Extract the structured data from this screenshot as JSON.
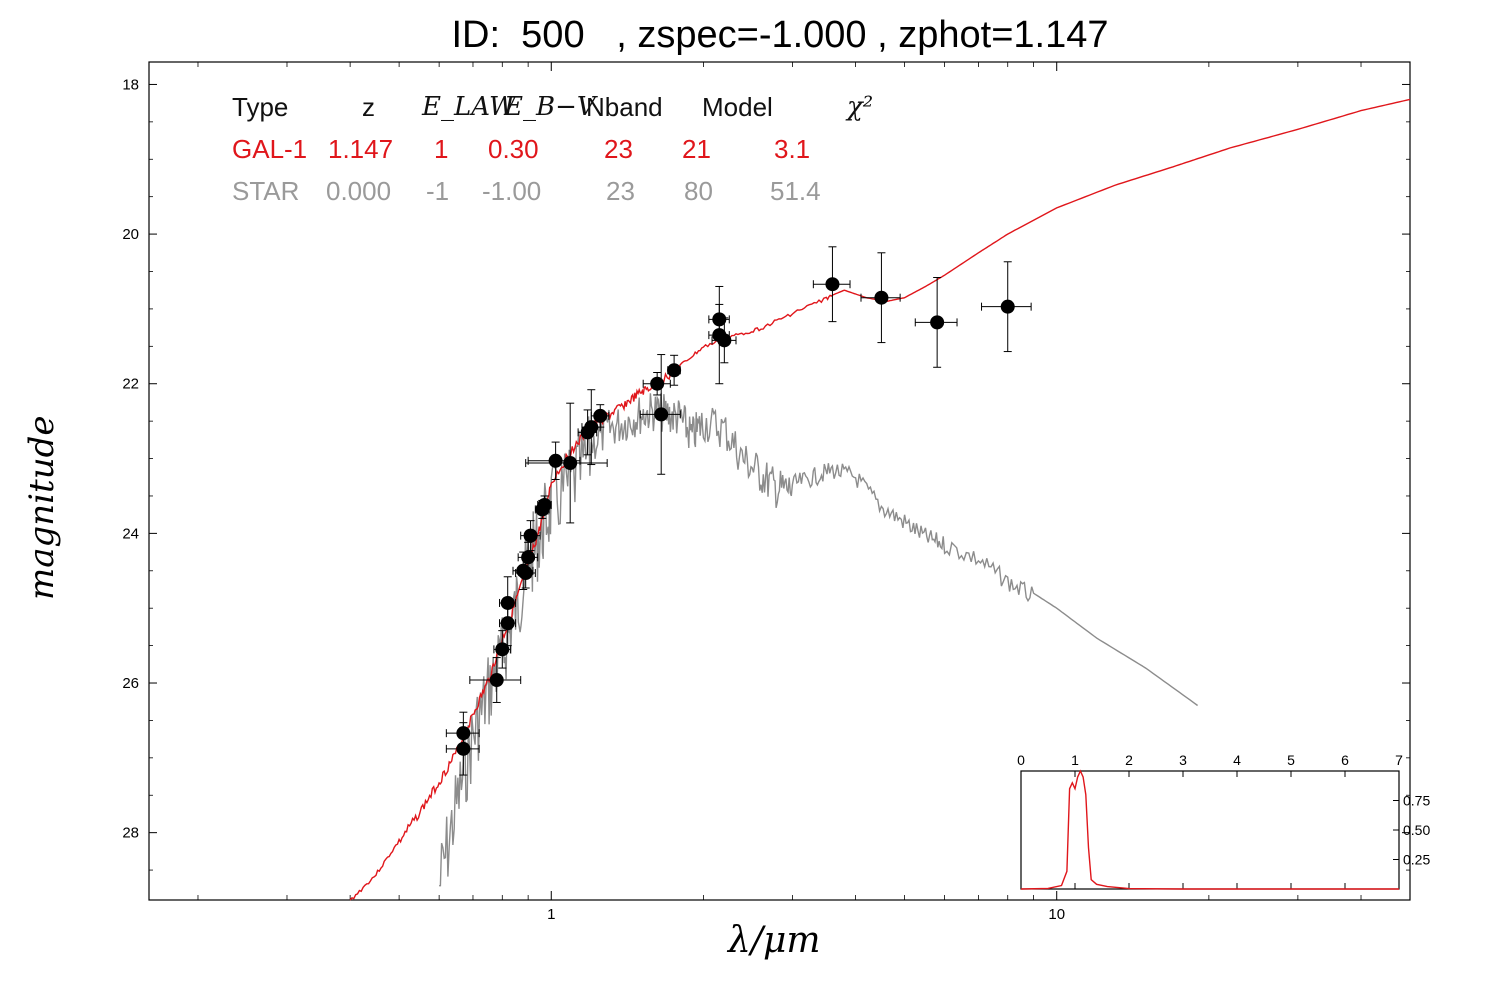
{
  "title": "ID:  500   , zspec=-1.000 , zphot=1.147",
  "axes": {
    "xlabel": "λ/μm",
    "ylabel": "magnitude",
    "x_scale": "log",
    "xlim": [
      0.16,
      50
    ],
    "ylim": [
      28.9,
      17.7
    ],
    "x_tick_labels": [
      "1",
      "10"
    ],
    "y_tick_labels": [
      "18",
      "20",
      "22",
      "24",
      "26",
      "28"
    ]
  },
  "fit_table": {
    "headers": [
      "Type",
      "z",
      "E_LAW",
      "E_B−V",
      "Nband",
      "Model",
      "χ²"
    ],
    "rows": [
      {
        "type": "GAL-1",
        "z": "1.147",
        "elaw": "1",
        "ebv": "0.30",
        "nband": "23",
        "model": "21",
        "chi2": "3.1",
        "color": "#e0161b"
      },
      {
        "type": "STAR",
        "z": "0.000",
        "elaw": "-1",
        "ebv": "-1.00",
        "nband": "23",
        "model": "80",
        "chi2": "51.4",
        "color": "#9a9a9a"
      }
    ]
  },
  "chart_data": [
    {
      "type": "scatter",
      "name_note": "photometry with errorbars",
      "x_scale": "log",
      "points": [
        {
          "x": 0.67,
          "y": 26.67,
          "xerr": 0.05,
          "yerr": 0.28
        },
        {
          "x": 0.67,
          "y": 26.88,
          "xerr": 0.05,
          "yerr": 0.35
        },
        {
          "x": 0.78,
          "y": 25.96,
          "xerr": 0.09,
          "yerr": 0.3
        },
        {
          "x": 0.8,
          "y": 25.55,
          "xerr": 0.03,
          "yerr": 0.25
        },
        {
          "x": 0.82,
          "y": 25.2,
          "xerr": 0.03,
          "yerr": 0.3
        },
        {
          "x": 0.82,
          "y": 24.93,
          "xerr": 0.03,
          "yerr": 0.35
        },
        {
          "x": 0.88,
          "y": 24.5,
          "xerr": 0.04,
          "yerr": 0.25
        },
        {
          "x": 0.89,
          "y": 24.53,
          "xerr": 0.04,
          "yerr": 0.2
        },
        {
          "x": 0.9,
          "y": 24.32,
          "xerr": 0.04,
          "yerr": 0.2
        },
        {
          "x": 0.91,
          "y": 24.03,
          "xerr": 0.04,
          "yerr": 0.2
        },
        {
          "x": 0.96,
          "y": 23.68,
          "xerr": 0.03,
          "yerr": 0.12
        },
        {
          "x": 0.97,
          "y": 23.62,
          "xerr": 0.03,
          "yerr": 0.12
        },
        {
          "x": 1.02,
          "y": 23.03,
          "xerr": 0.12,
          "yerr": 0.25
        },
        {
          "x": 1.09,
          "y": 23.06,
          "xerr": 0.2,
          "yerr": 0.8
        },
        {
          "x": 1.18,
          "y": 22.65,
          "xerr": 0.05,
          "yerr": 0.3
        },
        {
          "x": 1.2,
          "y": 22.58,
          "xerr": 0.05,
          "yerr": 0.5
        },
        {
          "x": 1.25,
          "y": 22.43,
          "xerr": 0.05,
          "yerr": 0.15
        },
        {
          "x": 1.62,
          "y": 22.0,
          "xerr": 0.1,
          "yerr": 0.15
        },
        {
          "x": 1.65,
          "y": 22.41,
          "xerr": 0.15,
          "yerr": 0.8
        },
        {
          "x": 1.75,
          "y": 21.82,
          "xerr": 0.05,
          "yerr": 0.2
        },
        {
          "x": 2.15,
          "y": 21.14,
          "xerr": 0.1,
          "yerr": 0.2
        },
        {
          "x": 2.15,
          "y": 21.35,
          "xerr": 0.1,
          "yerr": 0.65
        },
        {
          "x": 2.2,
          "y": 21.42,
          "xerr": 0.12,
          "yerr": 0.3
        },
        {
          "x": 3.6,
          "y": 20.67,
          "xerr": 0.3,
          "yerr": 0.5
        },
        {
          "x": 4.5,
          "y": 20.85,
          "xerr": 0.4,
          "yerr": 0.6
        },
        {
          "x": 5.8,
          "y": 21.18,
          "xerr": 0.55,
          "yerr": 0.6
        },
        {
          "x": 8.0,
          "y": 20.97,
          "xerr": 0.9,
          "yerr": 0.6
        }
      ]
    },
    {
      "type": "line",
      "series_note": "GAL-1 best-fit template",
      "color": "#e0161b",
      "x": [
        0.4,
        0.45,
        0.5,
        0.55,
        0.6,
        0.65,
        0.7,
        0.75,
        0.8,
        0.85,
        0.9,
        0.95,
        1.0,
        1.1,
        1.2,
        1.3,
        1.4,
        1.5,
        1.6,
        1.8,
        2.0,
        2.3,
        2.6,
        3.0,
        3.5,
        3.8,
        4.2,
        4.6,
        5.0,
        5.5,
        6.0,
        7.0,
        8.0,
        10.0,
        13.0,
        17.0,
        22.0,
        30.0,
        40.0,
        50.0
      ],
      "y": [
        28.9,
        28.55,
        28.1,
        27.7,
        27.3,
        26.9,
        26.4,
        25.95,
        25.4,
        24.9,
        24.4,
        23.9,
        23.3,
        22.85,
        22.55,
        22.4,
        22.25,
        22.1,
        22.0,
        21.75,
        21.5,
        21.35,
        21.25,
        21.05,
        20.85,
        20.75,
        20.85,
        20.9,
        20.85,
        20.7,
        20.55,
        20.25,
        20.0,
        19.65,
        19.35,
        19.1,
        18.85,
        18.6,
        18.35,
        18.2
      ]
    },
    {
      "type": "line",
      "series_note": "STAR best-fit template",
      "color": "#8c8c8c",
      "x": [
        0.6,
        0.65,
        0.7,
        0.75,
        0.8,
        0.85,
        0.9,
        0.95,
        1.0,
        1.1,
        1.2,
        1.3,
        1.4,
        1.5,
        1.6,
        1.7,
        1.8,
        1.9,
        2.0,
        2.2,
        2.4,
        2.6,
        2.8,
        3.0,
        3.3,
        3.6,
        4.0,
        4.5,
        5.0,
        5.5,
        6.0,
        7.0,
        8.0,
        9.0,
        10.0,
        12.0,
        15.0,
        19.0
      ],
      "y": [
        28.5,
        27.4,
        26.5,
        25.9,
        25.4,
        24.8,
        24.2,
        23.8,
        23.4,
        23.1,
        22.7,
        22.5,
        22.4,
        22.3,
        22.25,
        22.3,
        22.35,
        22.6,
        22.4,
        22.5,
        22.9,
        23.1,
        23.3,
        23.3,
        23.2,
        23.1,
        23.2,
        23.6,
        23.8,
        24.0,
        24.1,
        24.3,
        24.6,
        24.8,
        25.0,
        25.4,
        25.8,
        26.3
      ]
    },
    {
      "type": "line",
      "series_note": "inset redshift probability distribution",
      "color": "#e0161b",
      "x_tick_labels": [
        "0",
        "1",
        "2",
        "3",
        "4",
        "5",
        "6",
        "7"
      ],
      "y_tick_labels": [
        "0.25",
        "0.50",
        "0.75"
      ],
      "xlim": [
        0,
        7
      ],
      "ylim": [
        0,
        1.0
      ],
      "x": [
        0,
        0.5,
        0.75,
        0.85,
        0.9,
        0.95,
        1.0,
        1.05,
        1.1,
        1.15,
        1.2,
        1.25,
        1.3,
        1.4,
        1.6,
        2.0,
        3.0,
        7.0
      ],
      "y": [
        0.0,
        0.005,
        0.03,
        0.15,
        0.85,
        0.9,
        0.85,
        0.95,
        1.0,
        0.95,
        0.8,
        0.35,
        0.08,
        0.04,
        0.02,
        0.003,
        0.0,
        0.0
      ]
    }
  ]
}
